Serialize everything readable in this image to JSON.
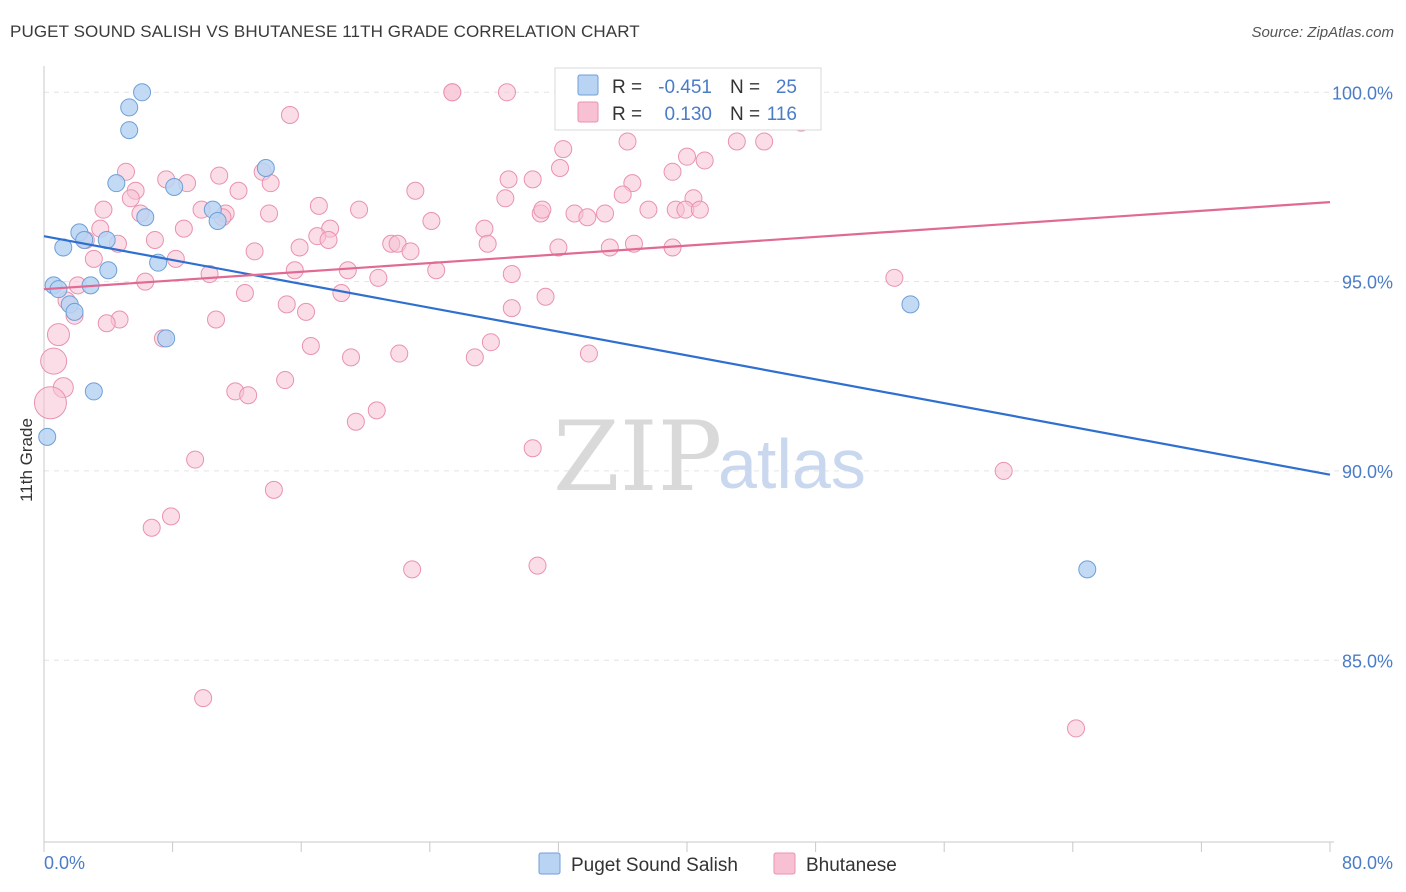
{
  "header": {
    "title": "PUGET SOUND SALISH VS BHUTANESE 11TH GRADE CORRELATION CHART",
    "source": "Source: ZipAtlas.com"
  },
  "watermark": {
    "zip": "ZIP",
    "atlas": "atlas"
  },
  "legend": {
    "r_label": "R =",
    "n_label": "N =",
    "rows": [
      {
        "r": "-0.451",
        "n": "25"
      },
      {
        "r": "0.130",
        "n": "116"
      }
    ]
  },
  "colors": {
    "blue_fill": "#b9d3f2",
    "blue_stroke": "#6f9fd8",
    "blue_line": "#2f6fcf",
    "pink_fill": "#f7c1d3",
    "pink_stroke": "#e992b0",
    "pink_line": "#e06a93"
  },
  "chart_data": {
    "type": "scatter",
    "title": "PUGET SOUND SALISH VS BHUTANESE 11TH GRADE CORRELATION CHART",
    "xlabel": "",
    "ylabel": "11th Grade",
    "xlim": [
      0,
      80
    ],
    "ylim": [
      80.2,
      100.8
    ],
    "x_tick_labels": [
      "0.0%",
      "80.0%"
    ],
    "y_ticks": [
      {
        "value": 100,
        "label": "100.0%"
      },
      {
        "value": 95,
        "label": "95.0%"
      },
      {
        "value": 90,
        "label": "90.0%"
      },
      {
        "value": 85,
        "label": "85.0%"
      }
    ],
    "grid": true,
    "legend_position": "top-center",
    "series": [
      {
        "name": "Puget Sound Salish",
        "color": "blue",
        "trend": {
          "x": [
            0,
            80
          ],
          "y": [
            96.2,
            89.9
          ]
        },
        "points": [
          [
            6.1,
            100.0
          ],
          [
            5.3,
            99.6
          ],
          [
            5.3,
            99.0
          ],
          [
            13.8,
            98.0
          ],
          [
            4.5,
            97.6
          ],
          [
            8.1,
            97.5
          ],
          [
            6.3,
            96.7
          ],
          [
            10.5,
            96.9
          ],
          [
            10.8,
            96.6
          ],
          [
            2.2,
            96.3
          ],
          [
            1.2,
            95.9
          ],
          [
            2.5,
            96.1
          ],
          [
            3.9,
            96.1
          ],
          [
            7.1,
            95.5
          ],
          [
            4.0,
            95.3
          ],
          [
            0.6,
            94.9
          ],
          [
            0.9,
            94.8
          ],
          [
            2.9,
            94.9
          ],
          [
            1.6,
            94.4
          ],
          [
            1.9,
            94.2
          ],
          [
            7.6,
            93.5
          ],
          [
            3.1,
            92.1
          ],
          [
            0.2,
            90.9
          ],
          [
            53.9,
            94.4
          ],
          [
            64.9,
            87.4
          ]
        ]
      },
      {
        "name": "Bhutanese",
        "color": "pink",
        "trend": {
          "x": [
            0,
            80
          ],
          "y": [
            94.8,
            97.1
          ]
        },
        "points": [
          [
            25.4,
            100.0
          ],
          [
            25.4,
            100.0
          ],
          [
            28.8,
            100.0
          ],
          [
            44.2,
            100.0
          ],
          [
            45.8,
            100.0
          ],
          [
            15.3,
            99.4
          ],
          [
            47.1,
            99.2
          ],
          [
            32.3,
            98.5
          ],
          [
            32.1,
            98.0
          ],
          [
            36.3,
            98.7
          ],
          [
            43.1,
            98.7
          ],
          [
            44.8,
            98.7
          ],
          [
            40.0,
            98.3
          ],
          [
            41.1,
            98.2
          ],
          [
            39.1,
            97.9
          ],
          [
            5.1,
            97.9
          ],
          [
            7.6,
            97.7
          ],
          [
            10.9,
            97.8
          ],
          [
            13.6,
            97.9
          ],
          [
            36.6,
            97.6
          ],
          [
            30.4,
            97.7
          ],
          [
            28.9,
            97.7
          ],
          [
            36.0,
            97.3
          ],
          [
            14.1,
            97.6
          ],
          [
            5.7,
            97.4
          ],
          [
            8.9,
            97.6
          ],
          [
            12.1,
            97.4
          ],
          [
            23.1,
            97.4
          ],
          [
            28.7,
            97.2
          ],
          [
            40.4,
            97.2
          ],
          [
            17.1,
            97.0
          ],
          [
            5.4,
            97.2
          ],
          [
            3.7,
            96.9
          ],
          [
            9.8,
            96.9
          ],
          [
            11.3,
            96.8
          ],
          [
            14.0,
            96.8
          ],
          [
            19.6,
            96.9
          ],
          [
            30.9,
            96.8
          ],
          [
            31.0,
            96.9
          ],
          [
            33.0,
            96.8
          ],
          [
            34.9,
            96.8
          ],
          [
            37.6,
            96.9
          ],
          [
            39.3,
            96.9
          ],
          [
            39.9,
            96.9
          ],
          [
            40.8,
            96.9
          ],
          [
            6.0,
            96.8
          ],
          [
            11.1,
            96.7
          ],
          [
            33.8,
            96.7
          ],
          [
            24.1,
            96.6
          ],
          [
            8.7,
            96.4
          ],
          [
            17.8,
            96.4
          ],
          [
            3.5,
            96.4
          ],
          [
            27.4,
            96.4
          ],
          [
            17.0,
            96.2
          ],
          [
            2.6,
            96.1
          ],
          [
            4.6,
            96.0
          ],
          [
            6.9,
            96.1
          ],
          [
            17.7,
            96.1
          ],
          [
            21.6,
            96.0
          ],
          [
            22.0,
            96.0
          ],
          [
            27.6,
            96.0
          ],
          [
            32.0,
            95.9
          ],
          [
            35.2,
            95.9
          ],
          [
            36.7,
            96.0
          ],
          [
            15.9,
            95.9
          ],
          [
            13.1,
            95.8
          ],
          [
            22.8,
            95.8
          ],
          [
            39.1,
            95.9
          ],
          [
            3.1,
            95.6
          ],
          [
            8.2,
            95.6
          ],
          [
            15.6,
            95.3
          ],
          [
            18.9,
            95.3
          ],
          [
            24.4,
            95.3
          ],
          [
            29.1,
            95.2
          ],
          [
            10.3,
            95.2
          ],
          [
            20.8,
            95.1
          ],
          [
            6.3,
            95.0
          ],
          [
            52.9,
            95.1
          ],
          [
            2.1,
            94.9
          ],
          [
            12.5,
            94.7
          ],
          [
            18.5,
            94.7
          ],
          [
            31.2,
            94.6
          ],
          [
            1.4,
            94.5
          ],
          [
            15.1,
            94.4
          ],
          [
            16.3,
            94.2
          ],
          [
            29.1,
            94.3
          ],
          [
            10.7,
            94.0
          ],
          [
            1.9,
            94.1
          ],
          [
            4.7,
            94.0
          ],
          [
            3.9,
            93.9
          ],
          [
            0.9,
            93.6
          ],
          [
            7.4,
            93.5
          ],
          [
            16.6,
            93.3
          ],
          [
            27.8,
            93.4
          ],
          [
            22.1,
            93.1
          ],
          [
            19.1,
            93.0
          ],
          [
            26.8,
            93.0
          ],
          [
            33.9,
            93.1
          ],
          [
            0.6,
            92.9
          ],
          [
            15.0,
            92.4
          ],
          [
            1.2,
            92.2
          ],
          [
            11.9,
            92.1
          ],
          [
            12.7,
            92.0
          ],
          [
            0.4,
            91.8
          ],
          [
            20.7,
            91.6
          ],
          [
            19.4,
            91.3
          ],
          [
            30.4,
            90.6
          ],
          [
            9.4,
            90.3
          ],
          [
            59.7,
            90.0
          ],
          [
            14.3,
            89.5
          ],
          [
            7.9,
            88.8
          ],
          [
            6.7,
            88.5
          ],
          [
            22.9,
            87.4
          ],
          [
            30.7,
            87.5
          ],
          [
            9.9,
            84.0
          ],
          [
            64.2,
            83.2
          ]
        ]
      }
    ]
  },
  "bottom_legend": [
    "Puget Sound Salish",
    "Bhutanese"
  ]
}
